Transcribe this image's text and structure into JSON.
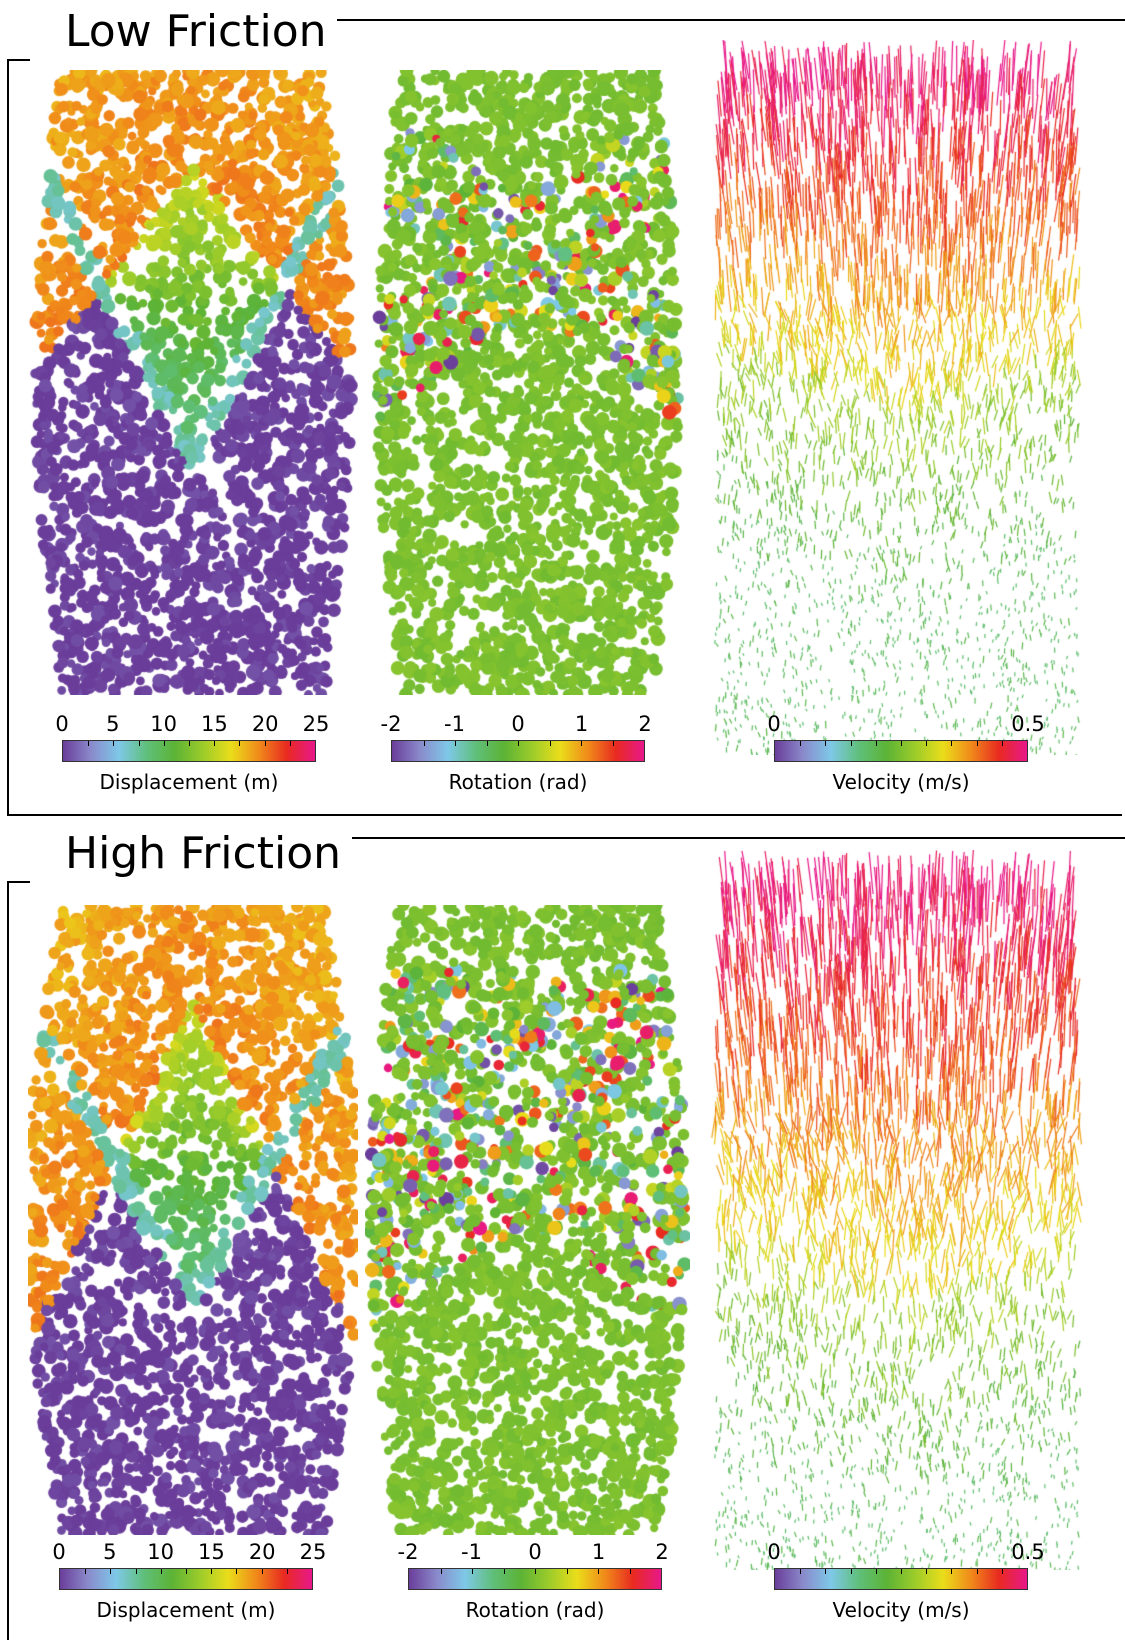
{
  "colors": {
    "scale": [
      "#6a3d9a",
      "#8a8acb",
      "#7ec8e8",
      "#5fbf7a",
      "#5cb335",
      "#9ccc2a",
      "#eadd1a",
      "#f08a1a",
      "#e82a20",
      "#e8188a"
    ],
    "displacement_low": "#7040a0",
    "displacement_mid": "#5db548",
    "displacement_high": "#e8841a",
    "rotation_base": "#5cb335",
    "frame": "#000000"
  },
  "panels": [
    {
      "title": "Low Friction",
      "colorbars": [
        {
          "ticks": [
            "0",
            "5",
            "10",
            "15",
            "20",
            "25"
          ],
          "label": "Displacement (m)"
        },
        {
          "ticks": [
            "-2",
            "-1",
            "0",
            "1",
            "2"
          ],
          "label": "Rotation (rad)"
        },
        {
          "ticks": [
            "0",
            "0.5"
          ],
          "label": "Velocity (m/s)"
        }
      ]
    },
    {
      "title": "High Friction",
      "colorbars": [
        {
          "ticks": [
            "0",
            "5",
            "10",
            "15",
            "20",
            "25"
          ],
          "label": "Displacement (m)"
        },
        {
          "ticks": [
            "-2",
            "-1",
            "0",
            "1",
            "2"
          ],
          "label": "Rotation (rad)"
        },
        {
          "ticks": [
            "0",
            "0.5"
          ],
          "label": "Velocity (m/s)"
        }
      ]
    }
  ]
}
